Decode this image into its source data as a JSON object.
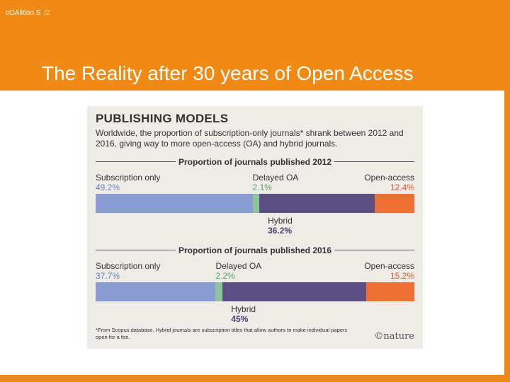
{
  "slide": {
    "header_label": "cOAlition S",
    "header_sep": "/2",
    "title": "The Reality after 30 years of Open Access"
  },
  "figure": {
    "title": "PUBLISHING MODELS",
    "subtitle": "Worldwide, the proportion of subscription-only journals* shrank between 2012 and 2016, giving way to more open-access (OA) and hybrid journals.",
    "footnote": "*From Scopus database. Hybrid journals are subscription titles that allow authors to make individual papers open for a fee.",
    "logo": "©nature"
  },
  "chart_data": {
    "type": "bar",
    "orientation": "horizontal-stacked-100",
    "colors": {
      "Subscription only": "#8a9ccf",
      "Delayed OA": "#8cc59a",
      "Hybrid": "#5a4f80",
      "Open-access": "#ef7034"
    },
    "panels": [
      {
        "title": "Proportion of journals published 2012",
        "segments": [
          {
            "name": "Subscription only",
            "value": 49.2,
            "label": "49.2%"
          },
          {
            "name": "Delayed OA",
            "value": 2.1,
            "label": "2.1%"
          },
          {
            "name": "Hybrid",
            "value": 36.2,
            "label": "36.2%"
          },
          {
            "name": "Open-access",
            "value": 12.4,
            "label": "12.4%"
          }
        ]
      },
      {
        "title": "Proportion of journals published 2016",
        "segments": [
          {
            "name": "Subscription only",
            "value": 37.7,
            "label": "37.7%"
          },
          {
            "name": "Delayed OA",
            "value": 2.2,
            "label": "2.2%"
          },
          {
            "name": "Hybrid",
            "value": 45,
            "label": "45%"
          },
          {
            "name": "Open-access",
            "value": 15.2,
            "label": "15.2%"
          }
        ]
      }
    ]
  }
}
